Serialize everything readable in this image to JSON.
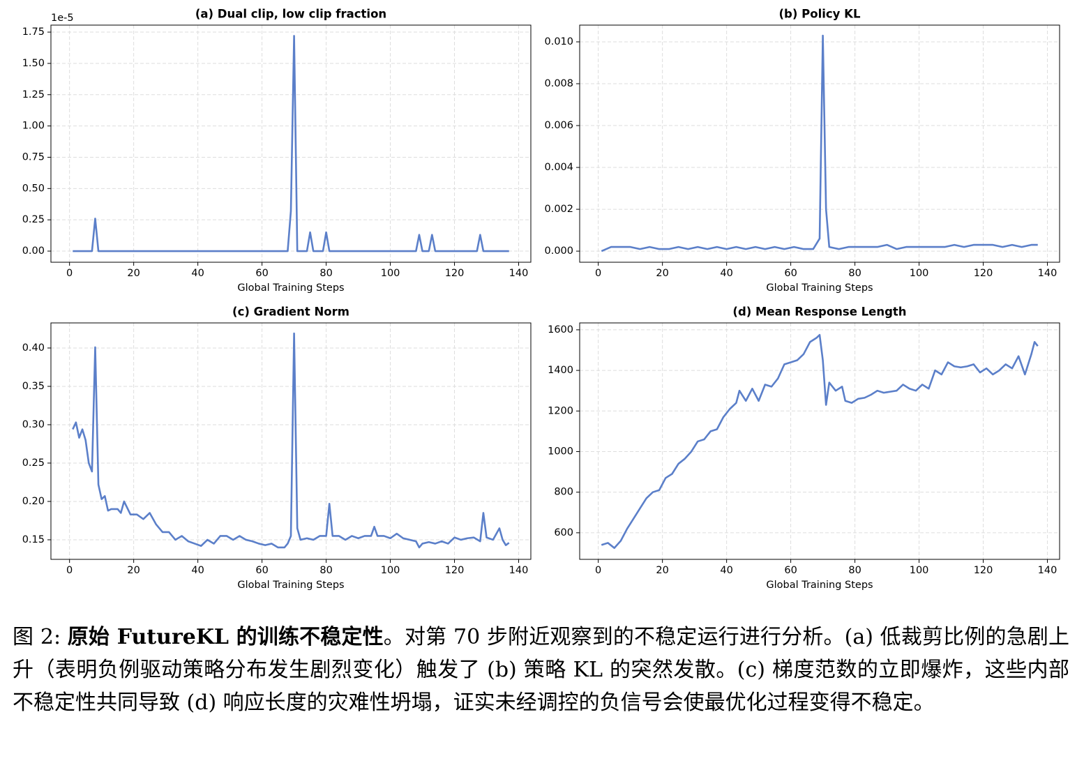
{
  "chart_data": [
    {
      "type": "line",
      "title": "(a) Dual clip, low clip fraction",
      "xlabel": "Global Training Steps",
      "offset_text": "1e-5",
      "grid": true,
      "x": [
        1,
        7,
        8,
        9,
        68,
        69,
        70,
        71,
        74,
        75,
        76,
        79,
        80,
        81,
        108,
        109,
        110,
        112,
        113,
        114,
        127,
        128,
        129,
        137
      ],
      "series": [
        {
          "color": "#5b7fc9",
          "values": [
            0,
            0,
            0.26,
            0,
            0,
            0.32,
            1.72,
            0,
            0,
            0.15,
            0,
            0,
            0.15,
            0,
            0,
            0.13,
            0,
            0,
            0.13,
            0,
            0,
            0.13,
            0,
            0
          ]
        }
      ],
      "xlim": [
        -5.8,
        143.8
      ],
      "xticks": [
        0,
        20,
        40,
        60,
        80,
        100,
        120,
        140
      ],
      "ylim": [
        -0.089,
        1.806
      ],
      "yticks": [
        {
          "value": 0,
          "label": "0.00"
        },
        {
          "value": 0.25,
          "label": "0.25"
        },
        {
          "value": 0.5,
          "label": "0.50"
        },
        {
          "value": 0.75,
          "label": "0.75"
        },
        {
          "value": 1,
          "label": "1.00"
        },
        {
          "value": 1.25,
          "label": "1.25"
        },
        {
          "value": 1.5,
          "label": "1.50"
        },
        {
          "value": 1.75,
          "label": "1.75"
        }
      ]
    },
    {
      "type": "line",
      "title": "(b) Policy KL",
      "xlabel": "Global Training Steps",
      "grid": true,
      "x": [
        1,
        4,
        7,
        10,
        13,
        16,
        19,
        22,
        25,
        28,
        31,
        34,
        37,
        40,
        43,
        46,
        49,
        52,
        55,
        58,
        61,
        64,
        67,
        69,
        70,
        71,
        72,
        75,
        78,
        81,
        84,
        87,
        90,
        93,
        96,
        99,
        102,
        105,
        108,
        111,
        114,
        117,
        120,
        123,
        126,
        129,
        132,
        135,
        137
      ],
      "series": [
        {
          "color": "#5b7fc9",
          "values": [
            0,
            0.0002,
            0.0002,
            0.0002,
            0.0001,
            0.0002,
            0.0001,
            0.0001,
            0.0002,
            0.0001,
            0.0002,
            0.0001,
            0.0002,
            0.0001,
            0.0002,
            0.0001,
            0.0002,
            0.0001,
            0.0002,
            0.0001,
            0.0002,
            0.0001,
            0.0001,
            0.0006,
            0.0103,
            0.002,
            0.0002,
            0.0001,
            0.0002,
            0.0002,
            0.0002,
            0.0002,
            0.0003,
            0.0001,
            0.0002,
            0.0002,
            0.0002,
            0.0002,
            0.0002,
            0.0003,
            0.0002,
            0.0003,
            0.0003,
            0.0003,
            0.0002,
            0.0003,
            0.0002,
            0.0003,
            0.0003
          ]
        }
      ],
      "xlim": [
        -5.8,
        143.8
      ],
      "xticks": [
        0,
        20,
        40,
        60,
        80,
        100,
        120,
        140
      ],
      "ylim": [
        -0.00053,
        0.0108
      ],
      "yticks": [
        {
          "value": 0,
          "label": "0.000"
        },
        {
          "value": 0.002,
          "label": "0.002"
        },
        {
          "value": 0.004,
          "label": "0.004"
        },
        {
          "value": 0.006,
          "label": "0.006"
        },
        {
          "value": 0.008,
          "label": "0.008"
        },
        {
          "value": 0.01,
          "label": "0.010"
        }
      ]
    },
    {
      "type": "line",
      "title": "(c) Gradient Norm",
      "xlabel": "Global Training Steps",
      "grid": true,
      "x": [
        1,
        2,
        3,
        4,
        5,
        6,
        7,
        8,
        9,
        10,
        11,
        12,
        13,
        15,
        16,
        17,
        19,
        21,
        23,
        25,
        27,
        29,
        31,
        33,
        35,
        37,
        39,
        41,
        43,
        45,
        47,
        49,
        51,
        53,
        55,
        57,
        59,
        61,
        63,
        65,
        67,
        68,
        69,
        70,
        71,
        72,
        74,
        76,
        78,
        80,
        81,
        82,
        84,
        86,
        88,
        90,
        92,
        94,
        95,
        96,
        98,
        100,
        102,
        104,
        106,
        108,
        109,
        110,
        112,
        114,
        116,
        118,
        120,
        122,
        124,
        126,
        128,
        129,
        130,
        132,
        134,
        135,
        136,
        137
      ],
      "series": [
        {
          "color": "#5b7fc9",
          "values": [
            0.294,
            0.303,
            0.283,
            0.294,
            0.28,
            0.25,
            0.239,
            0.401,
            0.222,
            0.203,
            0.207,
            0.188,
            0.19,
            0.19,
            0.185,
            0.2,
            0.183,
            0.183,
            0.177,
            0.185,
            0.17,
            0.16,
            0.16,
            0.15,
            0.155,
            0.148,
            0.145,
            0.142,
            0.15,
            0.145,
            0.155,
            0.155,
            0.15,
            0.155,
            0.15,
            0.148,
            0.145,
            0.143,
            0.145,
            0.14,
            0.14,
            0.145,
            0.155,
            0.419,
            0.165,
            0.15,
            0.152,
            0.15,
            0.155,
            0.155,
            0.197,
            0.155,
            0.155,
            0.15,
            0.155,
            0.152,
            0.155,
            0.155,
            0.167,
            0.155,
            0.155,
            0.152,
            0.158,
            0.152,
            0.15,
            0.148,
            0.14,
            0.145,
            0.147,
            0.145,
            0.148,
            0.145,
            0.153,
            0.15,
            0.152,
            0.153,
            0.148,
            0.185,
            0.153,
            0.15,
            0.165,
            0.15,
            0.143,
            0.146
          ]
        }
      ],
      "xlim": [
        -5.8,
        143.8
      ],
      "xticks": [
        0,
        20,
        40,
        60,
        80,
        100,
        120,
        140
      ],
      "ylim": [
        0.1245,
        0.4327
      ],
      "yticks": [
        0.15,
        {
          "value": 0.2,
          "label": "0.20"
        },
        0.25,
        {
          "value": 0.3,
          "label": "0.30"
        },
        0.35,
        {
          "value": 0.4,
          "label": "0.40"
        }
      ]
    },
    {
      "type": "line",
      "title": "(d) Mean Response Length",
      "xlabel": "Global Training Steps",
      "grid": true,
      "x": [
        1,
        3,
        5,
        7,
        9,
        11,
        13,
        15,
        17,
        19,
        21,
        23,
        25,
        27,
        29,
        31,
        33,
        35,
        37,
        39,
        41,
        43,
        44,
        46,
        48,
        50,
        52,
        54,
        56,
        58,
        60,
        62,
        64,
        66,
        68,
        69,
        70,
        71,
        72,
        74,
        76,
        77,
        79,
        81,
        83,
        85,
        87,
        89,
        91,
        93,
        95,
        97,
        99,
        101,
        103,
        105,
        107,
        109,
        111,
        113,
        115,
        117,
        119,
        121,
        123,
        125,
        127,
        129,
        131,
        133,
        135,
        136,
        137
      ],
      "series": [
        {
          "color": "#5b7fc9",
          "values": [
            540,
            550,
            525,
            560,
            620,
            670,
            720,
            770,
            800,
            810,
            870,
            890,
            940,
            965,
            1000,
            1050,
            1060,
            1100,
            1110,
            1170,
            1210,
            1240,
            1300,
            1250,
            1310,
            1250,
            1330,
            1320,
            1360,
            1430,
            1440,
            1450,
            1480,
            1540,
            1560,
            1575,
            1450,
            1230,
            1340,
            1300,
            1320,
            1250,
            1240,
            1260,
            1265,
            1280,
            1300,
            1290,
            1295,
            1300,
            1330,
            1310,
            1300,
            1330,
            1310,
            1400,
            1380,
            1440,
            1420,
            1415,
            1420,
            1430,
            1390,
            1410,
            1380,
            1400,
            1430,
            1410,
            1470,
            1380,
            1480,
            1540,
            1520
          ]
        }
      ],
      "xlim": [
        -5.8,
        143.8
      ],
      "xticks": [
        0,
        20,
        40,
        60,
        80,
        100,
        120,
        140
      ],
      "ylim": [
        469,
        1634
      ],
      "yticks": [
        600,
        800,
        1000,
        1200,
        1400,
        1600
      ]
    }
  ],
  "caption": {
    "label": "图 2:",
    "bold": "原始 FutureKL 的训练不稳定性",
    "text": "。对第 70 步附近观察到的不稳定运行进行分析。(a) 低裁剪比例的急剧上升（表明负例驱动策略分布发生剧烈变化）触发了 (b) 策略 KL 的突然发散。(c) 梯度范数的立即爆炸，这些内部不稳定性共同导致 (d) 响应长度的灾难性坍塌，证实未经调控的负信号会使最优化过程变得不稳定。"
  }
}
